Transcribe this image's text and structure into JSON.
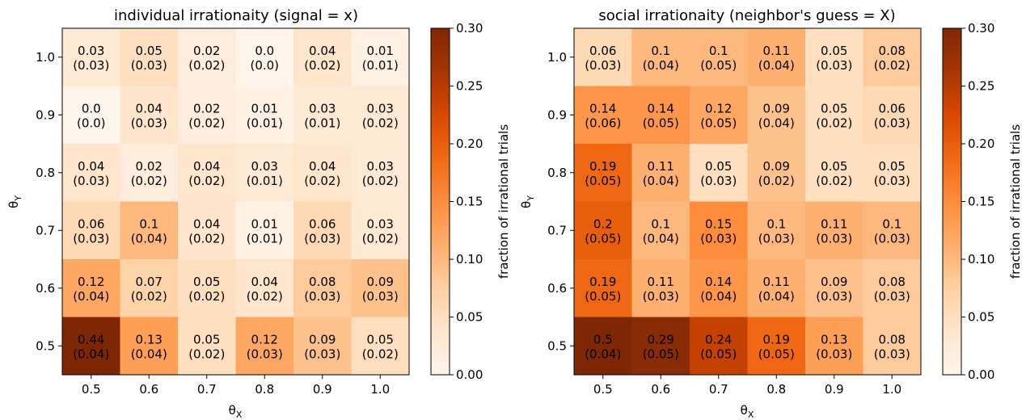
{
  "colors": {
    "cmap": [
      "#fff5eb",
      "#fee6ce",
      "#fdd0a2",
      "#fdae6b",
      "#fd8d3c",
      "#f16913",
      "#d94801",
      "#a63603",
      "#7f2704"
    ]
  },
  "chart_data": [
    {
      "type": "heatmap",
      "title": "individual irrationaity (signal = x)",
      "xlabel": "θ_X",
      "ylabel": "θ_Y",
      "x_ticks": [
        "0.5",
        "0.6",
        "0.7",
        "0.8",
        "0.9",
        "1.0"
      ],
      "y_ticks": [
        "1.0",
        "0.9",
        "0.8",
        "0.7",
        "0.6",
        "0.5"
      ],
      "values": [
        [
          0.03,
          0.05,
          0.02,
          0.0,
          0.04,
          0.01
        ],
        [
          0.0,
          0.04,
          0.02,
          0.01,
          0.03,
          0.03
        ],
        [
          0.04,
          0.02,
          0.04,
          0.03,
          0.04,
          0.03
        ],
        [
          0.06,
          0.1,
          0.04,
          0.01,
          0.06,
          0.03
        ],
        [
          0.12,
          0.07,
          0.05,
          0.04,
          0.08,
          0.09
        ],
        [
          0.44,
          0.13,
          0.05,
          0.12,
          0.09,
          0.05
        ]
      ],
      "errors": [
        [
          0.03,
          0.03,
          0.02,
          0.0,
          0.02,
          0.01
        ],
        [
          0.0,
          0.03,
          0.02,
          0.01,
          0.01,
          0.02
        ],
        [
          0.03,
          0.02,
          0.02,
          0.01,
          0.02,
          0.02
        ],
        [
          0.03,
          0.04,
          0.02,
          0.01,
          0.03,
          0.02
        ],
        [
          0.04,
          0.02,
          0.02,
          0.02,
          0.03,
          0.03
        ],
        [
          0.04,
          0.04,
          0.02,
          0.03,
          0.03,
          0.02
        ]
      ],
      "colorbar": {
        "label": "fraction of irrational trials",
        "range": [
          0.0,
          0.3
        ],
        "ticks": [
          "0.00",
          "0.05",
          "0.10",
          "0.15",
          "0.20",
          "0.25",
          "0.30"
        ]
      }
    },
    {
      "type": "heatmap",
      "title": "social irrationaity (neighbor's guess = X)",
      "xlabel": "θ_X",
      "ylabel": "θ_Y",
      "x_ticks": [
        "0.5",
        "0.6",
        "0.7",
        "0.8",
        "0.9",
        "1.0"
      ],
      "y_ticks": [
        "1.0",
        "0.9",
        "0.8",
        "0.7",
        "0.6",
        "0.5"
      ],
      "values": [
        [
          0.06,
          0.1,
          0.1,
          0.11,
          0.05,
          0.08
        ],
        [
          0.14,
          0.14,
          0.12,
          0.09,
          0.05,
          0.06
        ],
        [
          0.19,
          0.11,
          0.05,
          0.09,
          0.05,
          0.05
        ],
        [
          0.2,
          0.1,
          0.15,
          0.1,
          0.11,
          0.1
        ],
        [
          0.19,
          0.11,
          0.14,
          0.11,
          0.09,
          0.08
        ],
        [
          0.5,
          0.29,
          0.24,
          0.19,
          0.13,
          0.08
        ]
      ],
      "errors": [
        [
          0.03,
          0.04,
          0.05,
          0.04,
          0.03,
          0.02
        ],
        [
          0.06,
          0.05,
          0.05,
          0.04,
          0.02,
          0.03
        ],
        [
          0.05,
          0.04,
          0.03,
          0.02,
          0.02,
          0.03
        ],
        [
          0.05,
          0.04,
          0.03,
          0.03,
          0.03,
          0.03
        ],
        [
          0.05,
          0.03,
          0.04,
          0.04,
          0.03,
          0.03
        ],
        [
          0.04,
          0.05,
          0.05,
          0.05,
          0.03,
          0.03
        ]
      ],
      "colorbar": {
        "label": "fraction of irrational trials",
        "range": [
          0.0,
          0.3
        ],
        "ticks": [
          "0.00",
          "0.05",
          "0.10",
          "0.15",
          "0.20",
          "0.25",
          "0.30"
        ]
      }
    }
  ]
}
